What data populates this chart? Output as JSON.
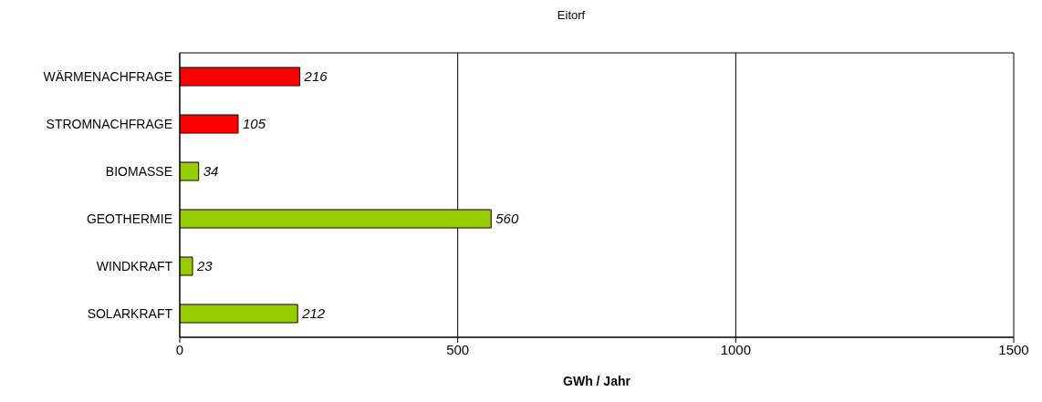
{
  "chart_data": {
    "type": "bar",
    "orientation": "horizontal",
    "title": "Eitorf",
    "xlabel": "GWh / Jahr",
    "categories": [
      "WÄRMENACHFRAGE",
      "STROMNACHFRAGE",
      "BIOMASSE",
      "GEOTHERMIE",
      "WINDKRAFT",
      "SOLARKRAFT"
    ],
    "values": [
      216,
      105,
      34,
      560,
      23,
      212
    ],
    "colors": [
      "#ff0000",
      "#ff0000",
      "#99cc00",
      "#99cc00",
      "#99cc00",
      "#99cc00"
    ],
    "xlim": [
      0,
      1500
    ],
    "xticks": [
      0,
      500,
      1000,
      1500
    ],
    "grid": "x",
    "data_labels": true
  }
}
